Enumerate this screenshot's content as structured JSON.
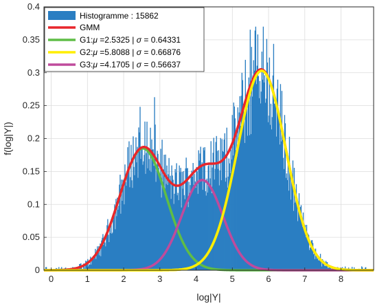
{
  "chart_data": {
    "type": "bar",
    "title": "",
    "xlabel": "log|Y|",
    "ylabel": "f(log|Y|)",
    "xlim": [
      -0.2,
      8.9
    ],
    "ylim": [
      0,
      0.4
    ],
    "xticks": [
      0,
      1,
      2,
      3,
      4,
      5,
      6,
      7,
      8
    ],
    "yticks": [
      0,
      0.05,
      0.1,
      0.15,
      0.2,
      0.25,
      0.3,
      0.35,
      0.4
    ],
    "xtick_labels": [
      "0",
      "1",
      "2",
      "3",
      "4",
      "5",
      "6",
      "7",
      "8"
    ],
    "ytick_labels": [
      "0",
      "0.05",
      "0.1",
      "0.15",
      "0.2",
      "0.25",
      "0.3",
      "0.35",
      "0.4"
    ],
    "grid": true,
    "legend_position": "top-left",
    "histogram": {
      "name": "Histogramme : 15862",
      "color": "#2a7ec2",
      "sample_count": 15862,
      "x_range": [
        -0.2,
        8.9
      ]
    },
    "series": [
      {
        "name": "GMM",
        "color": "#e8262b",
        "kind": "mixture"
      },
      {
        "name": "G1:μ =2.5325 |  σ = 0.64331",
        "label_prefix": "G1:",
        "mu_text": "=2.5325 |",
        "sigma_text": "= 0.64331",
        "color": "#5fbd46",
        "mu": 2.5325,
        "sigma": 0.64331,
        "peak": 0.185
      },
      {
        "name": "G2:μ =5.8088 |  σ = 0.66876",
        "label_prefix": "G2:",
        "mu_text": "=5.8088 |",
        "sigma_text": "= 0.66876",
        "color": "#ffee00",
        "mu": 5.8088,
        "sigma": 0.66876,
        "peak": 0.303
      },
      {
        "name": "G3:μ =4.1705 |  σ = 0.56637",
        "label_prefix": "G3:",
        "mu_text": "=4.1705 |",
        "sigma_text": "= 0.56637",
        "color": "#bf4b9c",
        "mu": 4.1705,
        "sigma": 0.56637,
        "peak": 0.137
      }
    ]
  }
}
